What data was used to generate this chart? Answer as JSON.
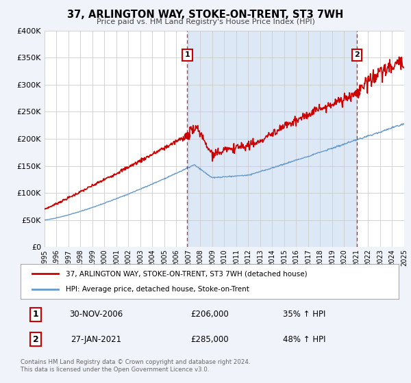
{
  "title": "37, ARLINGTON WAY, STOKE-ON-TRENT, ST3 7WH",
  "subtitle": "Price paid vs. HM Land Registry's House Price Index (HPI)",
  "bg_color": "#f0f4fa",
  "plot_bg_color": "#ffffff",
  "shaded_region_color": "#dce8f5",
  "grid_color": "#cccccc",
  "red_line_color": "#cc0000",
  "blue_line_color": "#6699cc",
  "marker1_date": 2006.917,
  "marker1_price": 206000,
  "marker2_date": 2021.08,
  "marker2_price": 285000,
  "xmin": 1995,
  "xmax": 2025,
  "ymin": 0,
  "ymax": 400000,
  "yticks": [
    0,
    50000,
    100000,
    150000,
    200000,
    250000,
    300000,
    350000,
    400000
  ],
  "legend_label_red": "37, ARLINGTON WAY, STOKE-ON-TRENT, ST3 7WH (detached house)",
  "legend_label_blue": "HPI: Average price, detached house, Stoke-on-Trent",
  "note1_num": "1",
  "note1_date": "30-NOV-2006",
  "note1_price": "£206,000",
  "note1_hpi": "35% ↑ HPI",
  "note2_num": "2",
  "note2_date": "27-JAN-2021",
  "note2_price": "£285,000",
  "note2_hpi": "48% ↑ HPI",
  "footer": "Contains HM Land Registry data © Crown copyright and database right 2024.\nThis data is licensed under the Open Government Licence v3.0."
}
